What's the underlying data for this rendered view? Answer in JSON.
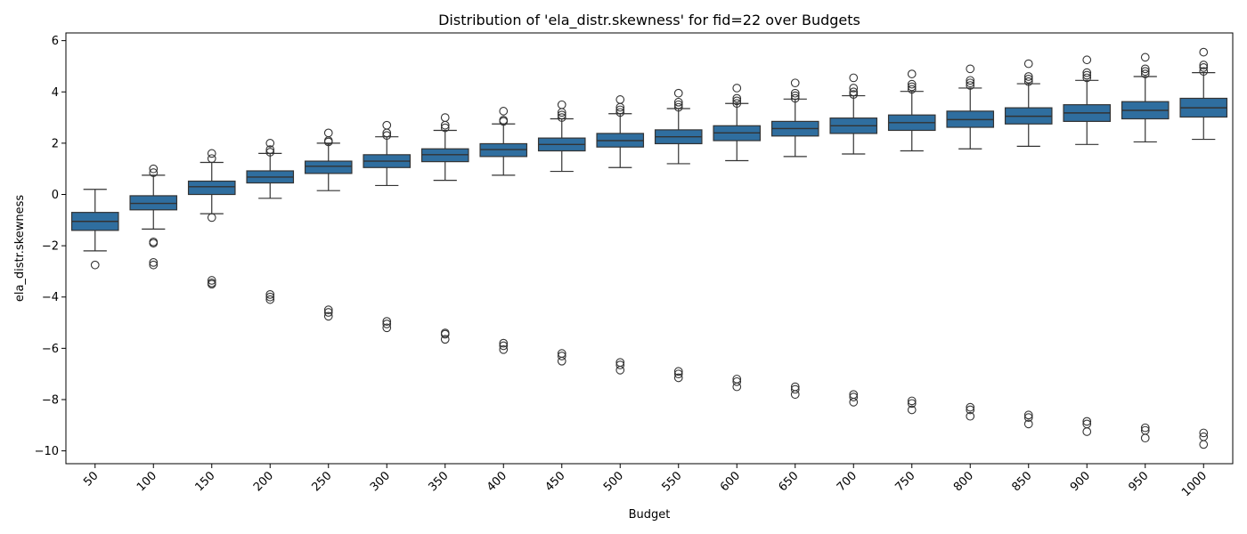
{
  "chart_data": {
    "type": "box",
    "title": "Distribution of 'ela_distr.skewness' for fid=22 over Budgets",
    "xlabel": "Budget",
    "ylabel": "ela_distr.skewness",
    "categories": [
      "50",
      "100",
      "150",
      "200",
      "250",
      "300",
      "350",
      "400",
      "450",
      "500",
      "550",
      "600",
      "650",
      "700",
      "750",
      "800",
      "850",
      "900",
      "950",
      "1000"
    ],
    "ylim": [
      -10.5,
      6.3
    ],
    "yticks": [
      -10,
      -8,
      -6,
      -4,
      -2,
      0,
      2,
      4,
      6
    ],
    "ytick_labels": [
      "−10",
      "−8",
      "−6",
      "−4",
      "−2",
      "0",
      "2",
      "4",
      "6"
    ],
    "grid": false,
    "colors": {
      "box_fill": "#2f6e9f",
      "line": "#333333",
      "axis": "#000000"
    },
    "boxes": [
      {
        "category": "50",
        "whisker_low": -2.2,
        "q1": -1.4,
        "median": -1.05,
        "q3": -0.7,
        "whisker_high": 0.2,
        "outliers": [
          -2.75
        ]
      },
      {
        "category": "100",
        "whisker_low": -1.35,
        "q1": -0.6,
        "median": -0.35,
        "q3": -0.05,
        "whisker_high": 0.75,
        "outliers": [
          1.0,
          0.85,
          -1.85,
          -1.9,
          -2.65,
          -2.75
        ]
      },
      {
        "category": "150",
        "whisker_low": -0.75,
        "q1": 0.0,
        "median": 0.3,
        "q3": 0.52,
        "whisker_high": 1.25,
        "outliers": [
          1.6,
          1.4,
          -0.9,
          -3.35,
          -3.45,
          -3.5
        ]
      },
      {
        "category": "200",
        "whisker_low": -0.15,
        "q1": 0.45,
        "median": 0.68,
        "q3": 0.92,
        "whisker_high": 1.6,
        "outliers": [
          2.0,
          1.75,
          1.65,
          -3.9,
          -4.0,
          -4.1
        ]
      },
      {
        "category": "250",
        "whisker_low": 0.15,
        "q1": 0.82,
        "median": 1.1,
        "q3": 1.3,
        "whisker_high": 2.0,
        "outliers": [
          2.4,
          2.1,
          2.05,
          -4.5,
          -4.6,
          -4.75
        ]
      },
      {
        "category": "300",
        "whisker_low": 0.35,
        "q1": 1.05,
        "median": 1.3,
        "q3": 1.55,
        "whisker_high": 2.25,
        "outliers": [
          2.7,
          2.4,
          2.3,
          -4.95,
          -5.05,
          -5.2
        ]
      },
      {
        "category": "350",
        "whisker_low": 0.55,
        "q1": 1.28,
        "median": 1.55,
        "q3": 1.78,
        "whisker_high": 2.5,
        "outliers": [
          3.0,
          2.7,
          2.6,
          -5.4,
          -5.45,
          -5.65
        ]
      },
      {
        "category": "400",
        "whisker_low": 0.75,
        "q1": 1.48,
        "median": 1.75,
        "q3": 1.98,
        "whisker_high": 2.75,
        "outliers": [
          3.25,
          2.9,
          2.85,
          -5.8,
          -5.9,
          -6.05
        ]
      },
      {
        "category": "450",
        "whisker_low": 0.9,
        "q1": 1.7,
        "median": 1.95,
        "q3": 2.2,
        "whisker_high": 2.95,
        "outliers": [
          3.5,
          3.2,
          3.1,
          3.0,
          -6.2,
          -6.3,
          -6.5
        ]
      },
      {
        "category": "500",
        "whisker_low": 1.05,
        "q1": 1.85,
        "median": 2.1,
        "q3": 2.38,
        "whisker_high": 3.15,
        "outliers": [
          3.7,
          3.4,
          3.3,
          3.2,
          -6.55,
          -6.65,
          -6.85
        ]
      },
      {
        "category": "550",
        "whisker_low": 1.2,
        "q1": 1.98,
        "median": 2.25,
        "q3": 2.52,
        "whisker_high": 3.35,
        "outliers": [
          3.95,
          3.6,
          3.5,
          3.4,
          -6.9,
          -7.0,
          -7.15
        ]
      },
      {
        "category": "600",
        "whisker_low": 1.32,
        "q1": 2.1,
        "median": 2.4,
        "q3": 2.68,
        "whisker_high": 3.55,
        "outliers": [
          4.15,
          3.75,
          3.65,
          3.55,
          -7.2,
          -7.3,
          -7.5
        ]
      },
      {
        "category": "650",
        "whisker_low": 1.48,
        "q1": 2.28,
        "median": 2.57,
        "q3": 2.85,
        "whisker_high": 3.72,
        "outliers": [
          4.35,
          3.95,
          3.85,
          3.75,
          -7.5,
          -7.6,
          -7.8
        ]
      },
      {
        "category": "700",
        "whisker_low": 1.58,
        "q1": 2.38,
        "median": 2.68,
        "q3": 2.98,
        "whisker_high": 3.85,
        "outliers": [
          4.55,
          4.15,
          4.0,
          3.9,
          -7.8,
          -7.9,
          -8.1
        ]
      },
      {
        "category": "750",
        "whisker_low": 1.7,
        "q1": 2.5,
        "median": 2.8,
        "q3": 3.1,
        "whisker_high": 4.02,
        "outliers": [
          4.7,
          4.3,
          4.2,
          4.1,
          -8.05,
          -8.15,
          -8.4
        ]
      },
      {
        "category": "800",
        "whisker_low": 1.78,
        "q1": 2.62,
        "median": 2.92,
        "q3": 3.25,
        "whisker_high": 4.15,
        "outliers": [
          4.9,
          4.45,
          4.35,
          4.25,
          -8.3,
          -8.4,
          -8.65
        ]
      },
      {
        "category": "850",
        "whisker_low": 1.88,
        "q1": 2.75,
        "median": 3.05,
        "q3": 3.38,
        "whisker_high": 4.32,
        "outliers": [
          5.1,
          4.6,
          4.5,
          4.4,
          -8.6,
          -8.7,
          -8.95
        ]
      },
      {
        "category": "900",
        "whisker_low": 1.95,
        "q1": 2.85,
        "median": 3.18,
        "q3": 3.5,
        "whisker_high": 4.45,
        "outliers": [
          5.25,
          4.75,
          4.65,
          4.55,
          -8.85,
          -8.95,
          -9.25
        ]
      },
      {
        "category": "950",
        "whisker_low": 2.05,
        "q1": 2.95,
        "median": 3.28,
        "q3": 3.62,
        "whisker_high": 4.6,
        "outliers": [
          5.35,
          4.9,
          4.8,
          4.7,
          -9.1,
          -9.2,
          -9.5
        ]
      },
      {
        "category": "1000",
        "whisker_low": 2.15,
        "q1": 3.02,
        "median": 3.38,
        "q3": 3.75,
        "whisker_high": 4.75,
        "outliers": [
          5.55,
          5.05,
          4.95,
          4.8,
          -9.3,
          -9.45,
          -9.75
        ]
      }
    ]
  }
}
